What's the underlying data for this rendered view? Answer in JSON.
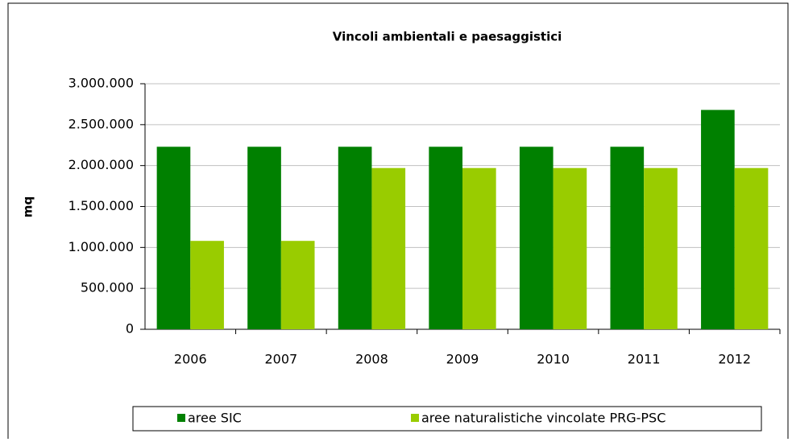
{
  "chart_data": {
    "type": "bar",
    "title": "Vincoli  ambientali e paesaggistici",
    "y_label": "mq",
    "categories": [
      "2006",
      "2007",
      "2008",
      "2009",
      "2010",
      "2011",
      "2012"
    ],
    "series": [
      {
        "name": "aree SIC",
        "color": "#008000",
        "values": [
          2230000,
          2230000,
          2230000,
          2230000,
          2230000,
          2230000,
          2680000
        ]
      },
      {
        "name": "aree naturalistiche vincolate PRG-PSC",
        "color": "#99cc00",
        "values": [
          1080000,
          1080000,
          1970000,
          1970000,
          1970000,
          1970000,
          1970000
        ]
      }
    ],
    "ylim": [
      0,
      3000000
    ],
    "yticks": [
      0,
      {
        "value": 500000,
        "label": "500.000"
      },
      {
        "value": 1000000,
        "label": "1.000.000"
      },
      {
        "value": 1500000,
        "label": "1.500.000"
      },
      {
        "value": 2000000,
        "label": "2.000.000"
      },
      {
        "value": 2500000,
        "label": "2.500.000"
      },
      {
        "value": 3000000,
        "label": "3.000.000"
      }
    ],
    "grid": true,
    "legend": "bottom"
  }
}
